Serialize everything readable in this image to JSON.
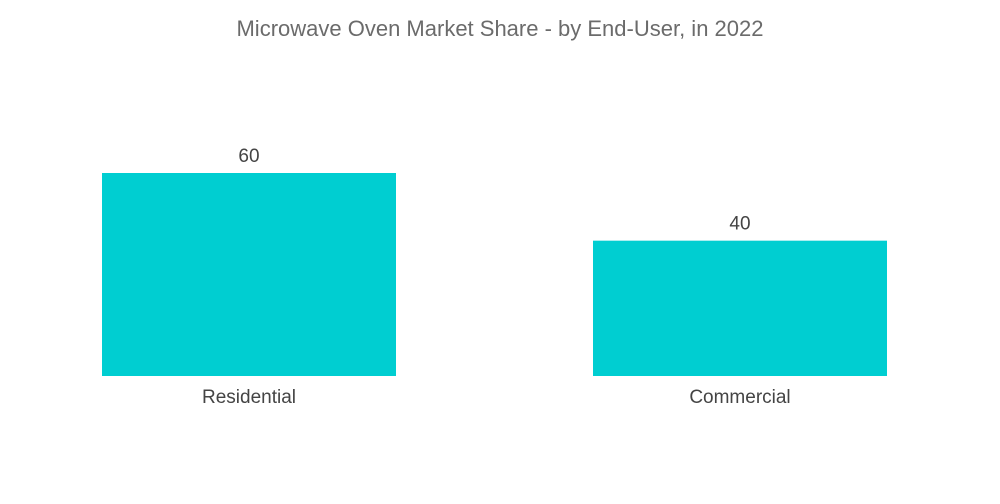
{
  "chart_data": {
    "type": "bar",
    "title": "Microwave Oven Market Share - by End-User, in 2022",
    "categories": [
      "Residential",
      "Commercial"
    ],
    "values": [
      60,
      40
    ],
    "xlabel": "",
    "ylabel": "",
    "ylim": [
      0,
      60
    ],
    "grid": false,
    "bar_color": "#00CED1",
    "data_labels": true
  }
}
